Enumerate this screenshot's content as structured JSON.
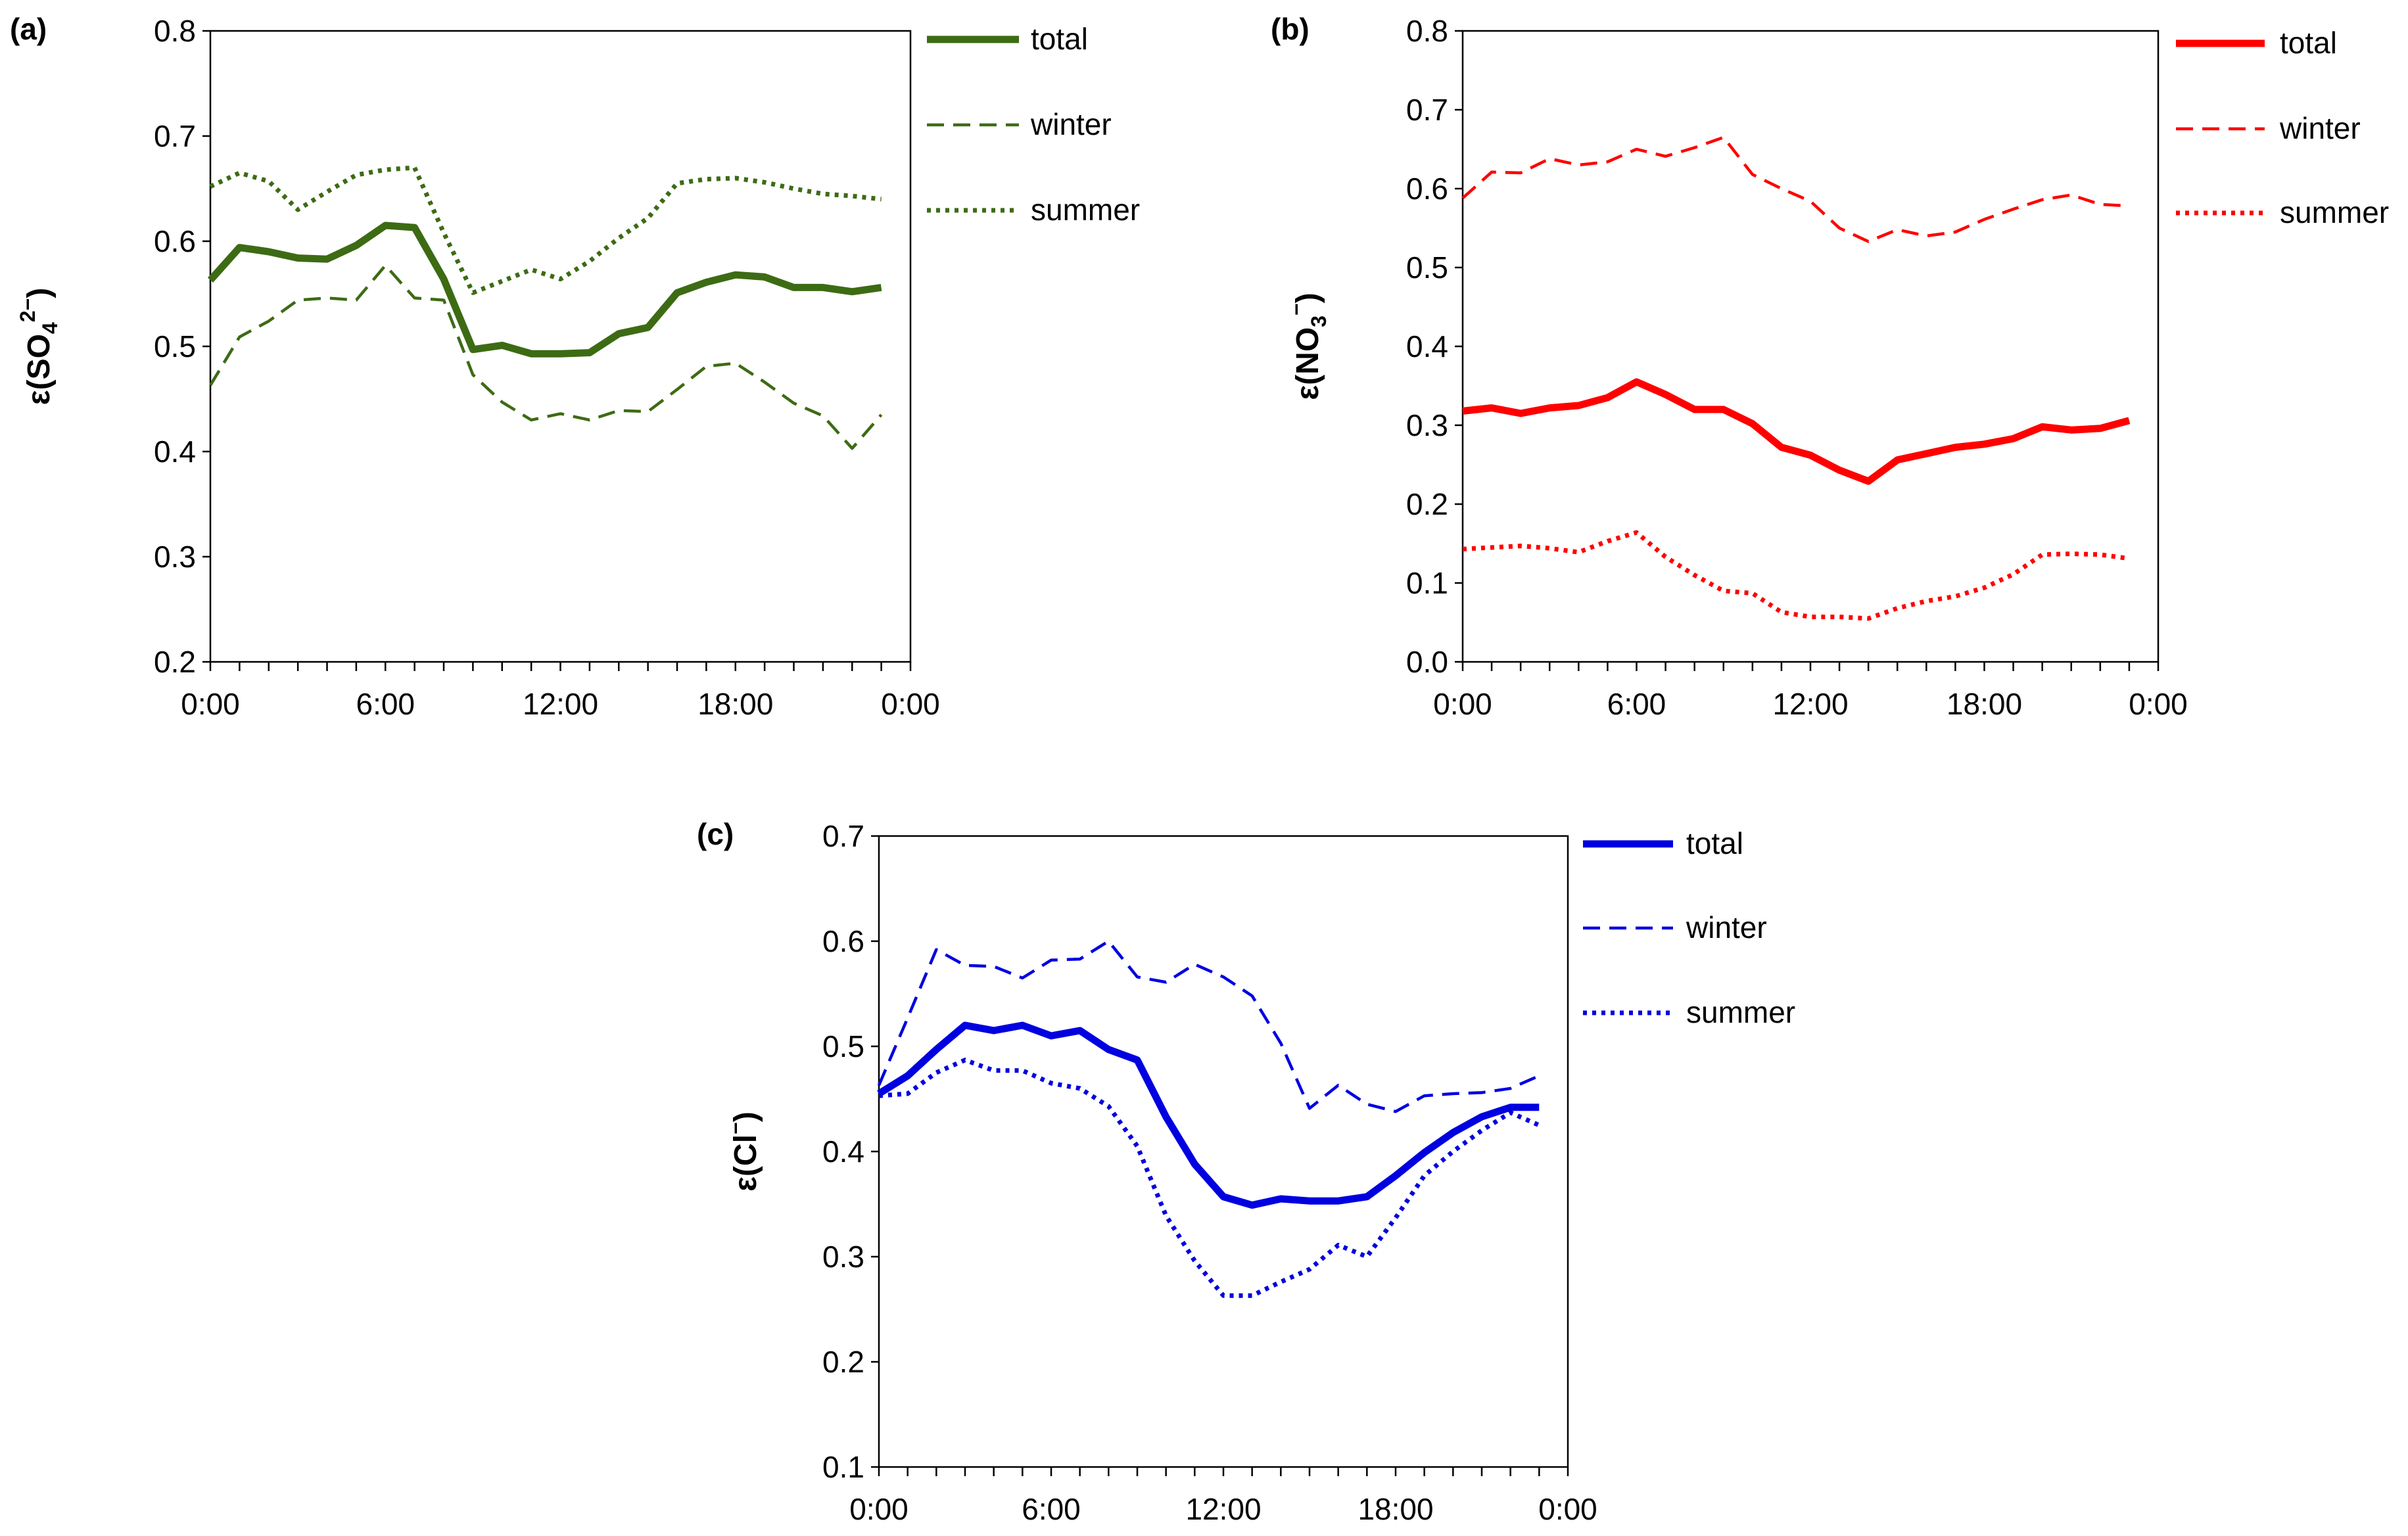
{
  "chart_data": [
    {
      "id": "a",
      "panel_label": "(a)",
      "type": "line",
      "ylabel_prefix": "ε(SO",
      "ylabel_sub": "4",
      "ylabel_sup": "2−",
      "ylabel_suffix": ")",
      "ylim": [
        0.2,
        0.8
      ],
      "yticks": [
        "0.2",
        "0.3",
        "0.4",
        "0.5",
        "0.6",
        "0.7",
        "0.8"
      ],
      "xticks": [
        "0:00",
        "6:00",
        "12:00",
        "18:00",
        "0:00"
      ],
      "x_hours": [
        0,
        1,
        2,
        3,
        4,
        5,
        6,
        7,
        8,
        9,
        10,
        11,
        12,
        13,
        14,
        15,
        16,
        17,
        18,
        19,
        20,
        21,
        22,
        23
      ],
      "color": "#3d6b14",
      "series": [
        {
          "name": "total",
          "style": "solid",
          "values": [
            0.563,
            0.594,
            0.59,
            0.584,
            0.583,
            0.596,
            0.615,
            0.613,
            0.564,
            0.497,
            0.501,
            0.493,
            0.493,
            0.494,
            0.512,
            0.518,
            0.551,
            0.561,
            0.568,
            0.566,
            0.556,
            0.556,
            0.552,
            0.556
          ]
        },
        {
          "name": "winter",
          "style": "dashed",
          "values": [
            0.463,
            0.509,
            0.524,
            0.544,
            0.546,
            0.544,
            0.577,
            0.546,
            0.544,
            0.473,
            0.447,
            0.43,
            0.436,
            0.43,
            0.439,
            0.438,
            0.459,
            0.481,
            0.484,
            0.466,
            0.446,
            0.434,
            0.403,
            0.435
          ]
        },
        {
          "name": "summer",
          "style": "dotted",
          "values": [
            0.652,
            0.665,
            0.657,
            0.63,
            0.647,
            0.663,
            0.668,
            0.67,
            0.608,
            0.551,
            0.562,
            0.573,
            0.564,
            0.581,
            0.603,
            0.622,
            0.655,
            0.659,
            0.66,
            0.656,
            0.65,
            0.645,
            0.643,
            0.64
          ]
        }
      ]
    },
    {
      "id": "b",
      "panel_label": "(b)",
      "type": "line",
      "ylabel_prefix": "ε(NO",
      "ylabel_sub": "3",
      "ylabel_sup": "−",
      "ylabel_suffix": ")",
      "ylim": [
        0.0,
        0.8
      ],
      "yticks": [
        "0.0",
        "0.1",
        "0.2",
        "0.3",
        "0.4",
        "0.5",
        "0.6",
        "0.7",
        "0.8"
      ],
      "xticks": [
        "0:00",
        "6:00",
        "12:00",
        "18:00",
        "0:00"
      ],
      "x_hours": [
        0,
        1,
        2,
        3,
        4,
        5,
        6,
        7,
        8,
        9,
        10,
        11,
        12,
        13,
        14,
        15,
        16,
        17,
        18,
        19,
        20,
        21,
        22,
        23
      ],
      "color": "#ff0000",
      "series": [
        {
          "name": "total",
          "style": "solid",
          "values": [
            0.318,
            0.322,
            0.315,
            0.322,
            0.325,
            0.335,
            0.355,
            0.339,
            0.32,
            0.32,
            0.302,
            0.272,
            0.262,
            0.243,
            0.229,
            0.256,
            0.264,
            0.272,
            0.276,
            0.283,
            0.298,
            0.294,
            0.296,
            0.306
          ]
        },
        {
          "name": "winter",
          "style": "dashed",
          "values": [
            0.588,
            0.621,
            0.62,
            0.638,
            0.63,
            0.634,
            0.65,
            0.641,
            0.652,
            0.665,
            0.618,
            0.6,
            0.584,
            0.55,
            0.533,
            0.548,
            0.54,
            0.545,
            0.561,
            0.574,
            0.586,
            0.592,
            0.58,
            0.578
          ]
        },
        {
          "name": "summer",
          "style": "dotted",
          "values": [
            0.143,
            0.145,
            0.147,
            0.144,
            0.139,
            0.153,
            0.164,
            0.133,
            0.11,
            0.09,
            0.087,
            0.063,
            0.057,
            0.057,
            0.055,
            0.068,
            0.077,
            0.083,
            0.094,
            0.111,
            0.136,
            0.137,
            0.136,
            0.131
          ]
        }
      ]
    },
    {
      "id": "c",
      "panel_label": "(c)",
      "type": "line",
      "ylabel_prefix": "ε(Cl",
      "ylabel_sub": "",
      "ylabel_sup": "−",
      "ylabel_suffix": ")",
      "ylim": [
        0.1,
        0.7
      ],
      "yticks": [
        "0.1",
        "0.2",
        "0.3",
        "0.4",
        "0.5",
        "0.6",
        "0.7"
      ],
      "xticks": [
        "0:00",
        "6:00",
        "12:00",
        "18:00",
        "0:00"
      ],
      "x_hours": [
        0,
        1,
        2,
        3,
        4,
        5,
        6,
        7,
        8,
        9,
        10,
        11,
        12,
        13,
        14,
        15,
        16,
        17,
        18,
        19,
        20,
        21,
        22,
        23
      ],
      "color": "#0000e0",
      "series": [
        {
          "name": "total",
          "style": "solid",
          "values": [
            0.455,
            0.472,
            0.497,
            0.52,
            0.515,
            0.52,
            0.51,
            0.515,
            0.497,
            0.487,
            0.433,
            0.388,
            0.357,
            0.349,
            0.355,
            0.353,
            0.353,
            0.357,
            0.377,
            0.399,
            0.418,
            0.433,
            0.442,
            0.442
          ]
        },
        {
          "name": "winter",
          "style": "dashed",
          "values": [
            0.463,
            0.527,
            0.592,
            0.577,
            0.576,
            0.565,
            0.582,
            0.583,
            0.6,
            0.566,
            0.561,
            0.578,
            0.566,
            0.548,
            0.503,
            0.441,
            0.463,
            0.445,
            0.438,
            0.453,
            0.455,
            0.456,
            0.46,
            0.472
          ]
        },
        {
          "name": "summer",
          "style": "dotted",
          "values": [
            0.453,
            0.455,
            0.475,
            0.487,
            0.477,
            0.477,
            0.465,
            0.46,
            0.443,
            0.405,
            0.339,
            0.296,
            0.263,
            0.263,
            0.276,
            0.288,
            0.311,
            0.3,
            0.337,
            0.377,
            0.4,
            0.42,
            0.437,
            0.425
          ]
        }
      ]
    }
  ]
}
